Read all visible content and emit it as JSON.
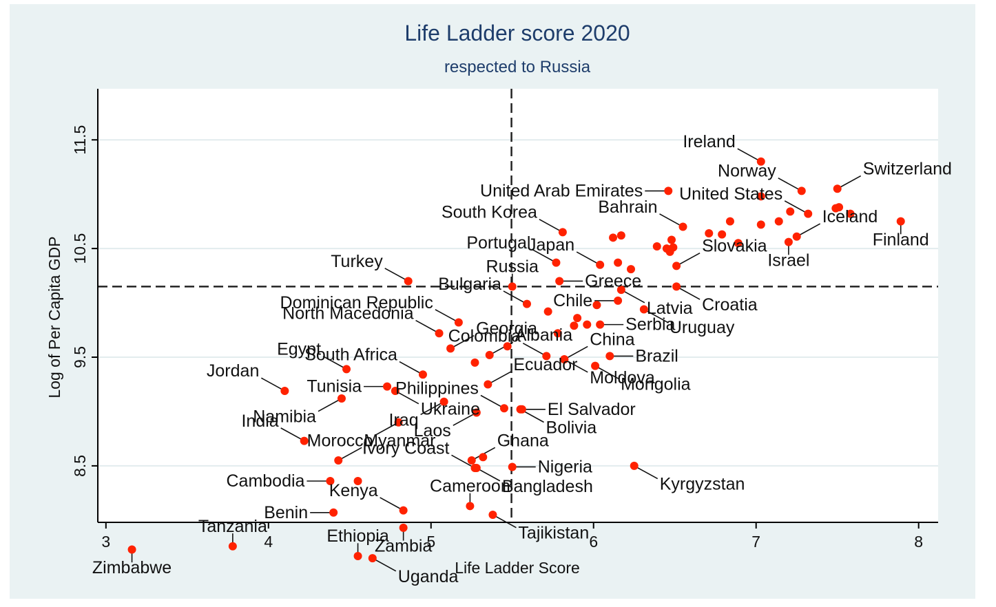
{
  "chart_data": {
    "type": "scatter",
    "title": "Life Ladder score 2020",
    "subtitle": "respected to Russia",
    "xlabel": "Life Ladder Score",
    "ylabel": "Log of Per Capita GDP",
    "xlim": [
      2.95,
      8.12
    ],
    "ylim": [
      7.98,
      11.97
    ],
    "x_ticks": [
      3,
      4,
      5,
      6,
      7,
      8
    ],
    "y_ticks": [
      8.5,
      9.5,
      10.5,
      11.5
    ],
    "y_tick_labels": [
      "8.5",
      "9.5",
      "10.5",
      "11.5"
    ],
    "grid": "horizontal",
    "reference_lines": {
      "x": 5.495,
      "y": 10.15
    },
    "marker_color": "#ff2200",
    "points": [
      {
        "x": 7.03,
        "y": 11.3,
        "label": "Ireland",
        "lp": "nw"
      },
      {
        "x": 7.28,
        "y": 11.03,
        "label": "Norway",
        "lp": "nw"
      },
      {
        "x": 7.5,
        "y": 11.05,
        "label": "Switzerland",
        "lp": "ne"
      },
      {
        "x": 6.46,
        "y": 11.03,
        "label": "United Arab Emirates",
        "lp": "w"
      },
      {
        "x": 7.03,
        "y": 10.98
      },
      {
        "x": 7.49,
        "y": 10.87
      },
      {
        "x": 7.51,
        "y": 10.88
      },
      {
        "x": 7.21,
        "y": 10.84
      },
      {
        "x": 7.32,
        "y": 10.82,
        "label": "United States",
        "lp": "nw"
      },
      {
        "x": 7.58,
        "y": 10.82
      },
      {
        "x": 6.84,
        "y": 10.75
      },
      {
        "x": 7.14,
        "y": 10.75
      },
      {
        "x": 7.03,
        "y": 10.72
      },
      {
        "x": 6.55,
        "y": 10.7,
        "label": "Bahrain",
        "lp": "nw"
      },
      {
        "x": 5.81,
        "y": 10.65,
        "label": "South Korea",
        "lp": "nw"
      },
      {
        "x": 6.71,
        "y": 10.64
      },
      {
        "x": 6.79,
        "y": 10.63
      },
      {
        "x": 6.17,
        "y": 10.62
      },
      {
        "x": 6.12,
        "y": 10.6
      },
      {
        "x": 7.25,
        "y": 10.61,
        "label": "Iceland",
        "lp": "ne"
      },
      {
        "x": 6.48,
        "y": 10.58
      },
      {
        "x": 7.2,
        "y": 10.56,
        "label": "Israel",
        "lp": "s"
      },
      {
        "x": 6.89,
        "y": 10.55
      },
      {
        "x": 7.89,
        "y": 10.75,
        "label": "Finland",
        "lp": "s"
      },
      {
        "x": 6.39,
        "y": 10.52
      },
      {
        "x": 6.49,
        "y": 10.51
      },
      {
        "x": 6.45,
        "y": 10.5
      },
      {
        "x": 6.47,
        "y": 10.47
      },
      {
        "x": 5.77,
        "y": 10.37,
        "label": "Portugal",
        "lp": "nw"
      },
      {
        "x": 6.15,
        "y": 10.37
      },
      {
        "x": 6.04,
        "y": 10.35,
        "label": "Japan",
        "lp": "nw"
      },
      {
        "x": 6.51,
        "y": 10.34,
        "label": "Slovakia",
        "lp": "ne"
      },
      {
        "x": 6.23,
        "y": 10.31
      },
      {
        "x": 4.86,
        "y": 10.2,
        "label": "Turkey",
        "lp": "nw"
      },
      {
        "x": 5.79,
        "y": 10.2,
        "label": "Greece",
        "lp": "e"
      },
      {
        "x": 5.5,
        "y": 10.15,
        "label": "Russia",
        "lp": "n"
      },
      {
        "x": 6.51,
        "y": 10.15,
        "label": "Croatia",
        "lp": "se"
      },
      {
        "x": 6.17,
        "y": 10.12,
        "label": "Latvia",
        "lp": "se"
      },
      {
        "x": 5.59,
        "y": 9.99,
        "label": "Bulgaria",
        "lp": "nw"
      },
      {
        "x": 6.15,
        "y": 10.02,
        "label": "Chile",
        "lp": "w"
      },
      {
        "x": 6.02,
        "y": 9.98
      },
      {
        "x": 5.72,
        "y": 9.92
      },
      {
        "x": 6.31,
        "y": 9.94,
        "label": "Uruguay",
        "lp": "se"
      },
      {
        "x": 5.9,
        "y": 9.86
      },
      {
        "x": 5.17,
        "y": 9.82,
        "label": "Dominican Republic",
        "lp": "nw"
      },
      {
        "x": 5.88,
        "y": 9.79
      },
      {
        "x": 5.96,
        "y": 9.8
      },
      {
        "x": 6.04,
        "y": 9.8,
        "label": "Serbia",
        "lp": "e"
      },
      {
        "x": 5.05,
        "y": 9.72,
        "label": "North Macedonia",
        "lp": "nw"
      },
      {
        "x": 5.78,
        "y": 9.72
      },
      {
        "x": 5.12,
        "y": 9.58,
        "label": "Georgia",
        "lp": "ne"
      },
      {
        "x": 5.47,
        "y": 9.6
      },
      {
        "x": 5.36,
        "y": 9.52,
        "label": "Albania",
        "lp": "ne"
      },
      {
        "x": 5.71,
        "y": 9.51,
        "label": "Colombia",
        "lp": "nw"
      },
      {
        "x": 6.1,
        "y": 9.51,
        "label": "Brazil",
        "lp": "e"
      },
      {
        "x": 5.82,
        "y": 9.48,
        "label": "China",
        "lp": "ne"
      },
      {
        "x": 5.82,
        "y": 9.48,
        "label": "Moldova",
        "lp": "se"
      },
      {
        "x": 4.48,
        "y": 9.39,
        "label": "Egypt",
        "lp": "nw"
      },
      {
        "x": 5.27,
        "y": 9.45
      },
      {
        "x": 6.01,
        "y": 9.42,
        "label": "Mongolia",
        "lp": "se"
      },
      {
        "x": 4.95,
        "y": 9.34,
        "label": "South Africa",
        "lp": "nw"
      },
      {
        "x": 5.35,
        "y": 9.25,
        "label": "Ecuador",
        "lp": "ne"
      },
      {
        "x": 4.73,
        "y": 9.23,
        "label": "Tunisia",
        "lp": "w"
      },
      {
        "x": 4.78,
        "y": 9.19,
        "label": "Ukraine",
        "lp": "se"
      },
      {
        "x": 4.1,
        "y": 9.19,
        "label": "Jordan",
        "lp": "nw"
      },
      {
        "x": 4.45,
        "y": 9.12,
        "label": "Namibia",
        "lp": "sw"
      },
      {
        "x": 5.08,
        "y": 9.09,
        "label": "Iraq",
        "lp": "sw"
      },
      {
        "x": 5.45,
        "y": 9.03,
        "label": "Philippines",
        "lp": "nw"
      },
      {
        "x": 5.55,
        "y": 9.02,
        "label": "Bolivia",
        "lp": "se"
      },
      {
        "x": 5.56,
        "y": 9.02,
        "label": "El Salvador",
        "lp": "e"
      },
      {
        "x": 5.28,
        "y": 8.99,
        "label": "Laos",
        "lp": "sw"
      },
      {
        "x": 4.8,
        "y": 8.9,
        "label": "Morocco",
        "lp": "sw"
      },
      {
        "x": 4.22,
        "y": 8.73,
        "label": "India",
        "lp": "nw"
      },
      {
        "x": 4.43,
        "y": 8.55,
        "label": "Myanmar",
        "lp": "ne"
      },
      {
        "x": 5.32,
        "y": 8.58
      },
      {
        "x": 5.25,
        "y": 8.55,
        "label": "Ghana",
        "lp": "ne"
      },
      {
        "x": 5.5,
        "y": 8.49,
        "label": "Nigeria",
        "lp": "e"
      },
      {
        "x": 5.27,
        "y": 8.48,
        "label": "Ivory Coast",
        "lp": "nw"
      },
      {
        "x": 5.28,
        "y": 8.48,
        "label": "Bangladesh",
        "lp": "se"
      },
      {
        "x": 6.25,
        "y": 8.5,
        "label": "Kyrgyzstan",
        "lp": "se"
      },
      {
        "x": 4.38,
        "y": 8.36,
        "label": "Cambodia",
        "lp": "w"
      },
      {
        "x": 4.55,
        "y": 8.36
      },
      {
        "x": 5.24,
        "y": 8.13,
        "label": "Cameroon",
        "lp": "n"
      },
      {
        "x": 4.4,
        "y": 8.07,
        "label": "Benin",
        "lp": "w"
      },
      {
        "x": 4.83,
        "y": 8.09,
        "label": "Kenya",
        "lp": "nw"
      },
      {
        "x": 5.38,
        "y": 8.05,
        "label": "Tajikistan",
        "lp": "se"
      },
      {
        "x": 3.78,
        "y": 7.76,
        "label": "Tanzania",
        "lp": "n"
      },
      {
        "x": 4.83,
        "y": 7.93,
        "label": "Zambia",
        "lp": "s"
      },
      {
        "x": 3.16,
        "y": 7.73,
        "label": "Zimbabwe",
        "lp": "s"
      },
      {
        "x": 4.55,
        "y": 7.67,
        "label": "Ethiopia",
        "lp": "n"
      },
      {
        "x": 4.64,
        "y": 7.65,
        "label": "Uganda",
        "lp": "se"
      }
    ]
  }
}
